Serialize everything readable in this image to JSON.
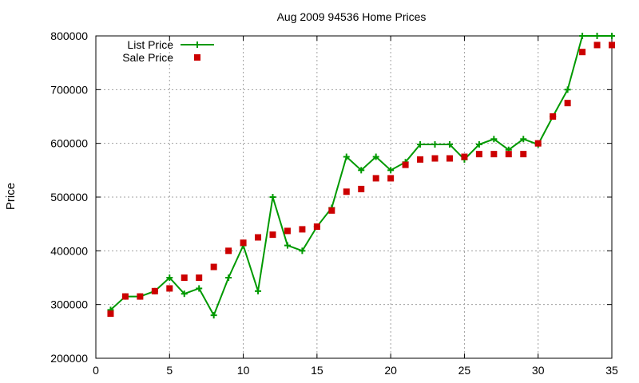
{
  "chart_data": {
    "type": "line",
    "title": "Aug 2009 94536 Home Prices",
    "xlabel": "",
    "ylabel": "Price",
    "xlim": [
      0,
      35
    ],
    "ylim": [
      200000,
      800000
    ],
    "xticks": [
      "0",
      "5",
      "10",
      "15",
      "20",
      "25",
      "30",
      "35"
    ],
    "yticks": [
      "200000",
      "300000",
      "400000",
      "500000",
      "600000",
      "700000",
      "800000"
    ],
    "grid": true,
    "legend_position": "top-left",
    "x": [
      1,
      2,
      3,
      4,
      5,
      6,
      7,
      8,
      9,
      10,
      11,
      12,
      13,
      14,
      15,
      16,
      17,
      18,
      19,
      20,
      21,
      22,
      23,
      24,
      25,
      26,
      27,
      28,
      29,
      30,
      31,
      32,
      33,
      34,
      35
    ],
    "series": [
      {
        "name": "List Price",
        "style": "line-cross",
        "color": "#009900",
        "values": [
          290000,
          315000,
          315000,
          325000,
          350000,
          320000,
          330000,
          280000,
          350000,
          410000,
          325000,
          500000,
          410000,
          400000,
          445000,
          480000,
          575000,
          550000,
          575000,
          550000,
          565000,
          598000,
          598000,
          598000,
          570000,
          598000,
          608000,
          588000,
          608000,
          598000,
          650000,
          700000,
          800000,
          800000,
          800000
        ]
      },
      {
        "name": "Sale Price",
        "style": "square-marker",
        "color": "#cc0000",
        "values": [
          283000,
          315000,
          315000,
          325000,
          330000,
          350000,
          350000,
          370000,
          400000,
          415000,
          425000,
          430000,
          437000,
          440000,
          445000,
          475000,
          510000,
          515000,
          535000,
          535000,
          560000,
          570000,
          572000,
          572000,
          575000,
          580000,
          580000,
          580000,
          580000,
          600000,
          650000,
          675000,
          770000,
          783000,
          783000
        ]
      }
    ]
  }
}
